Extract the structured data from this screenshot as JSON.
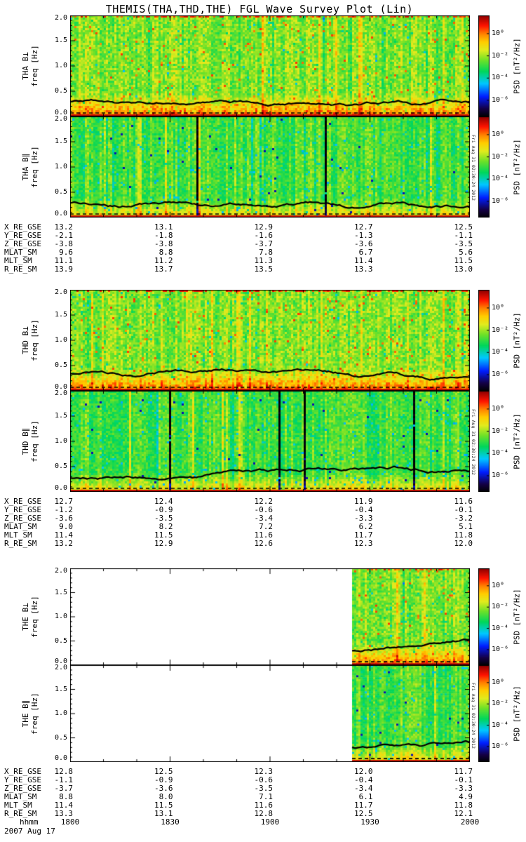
{
  "title": "THEMIS(THA,THD,THE) FGL Wave Survey Plot (Lin)",
  "timestamp_note": "Fri Aug 31 02:30:24 2012",
  "freq_ticks": [
    "2.0",
    "1.5",
    "1.0",
    "0.5",
    "0.0"
  ],
  "colorbar": {
    "title": "PSD [nT²/Hz]",
    "ticks": [
      "10⁰",
      "10⁻²",
      "10⁻⁴",
      "10⁻⁶"
    ]
  },
  "footer": {
    "time_label": "hhmm",
    "time_ticks": [
      "1800",
      "1830",
      "1900",
      "1930",
      "2000"
    ],
    "date": "2007 Aug 17"
  },
  "groups": [
    {
      "probe": "THA",
      "panels": [
        {
          "label_line1": "THA B⊥",
          "label_line2": "freq [Hz]"
        },
        {
          "label_line1": "THA B∥",
          "label_line2": "freq [Hz]"
        }
      ],
      "ephemeris": [
        {
          "label": "X_RE_GSE",
          "values": [
            "13.2",
            "13.1",
            "12.9",
            "12.7",
            "12.5"
          ]
        },
        {
          "label": "Y_RE_GSE",
          "values": [
            "-2.1",
            "-1.8",
            "-1.6",
            "-1.3",
            "-1.1"
          ]
        },
        {
          "label": "Z_RE_GSE",
          "values": [
            "-3.8",
            "-3.8",
            "-3.7",
            "-3.6",
            "-3.5"
          ]
        },
        {
          "label": "MLAT_SM",
          "values": [
            "9.6",
            "8.8",
            "7.8",
            "6.7",
            "5.6"
          ]
        },
        {
          "label": "MLT_SM",
          "values": [
            "11.1",
            "11.2",
            "11.3",
            "11.4",
            "11.5"
          ]
        },
        {
          "label": "R_RE_SM",
          "values": [
            "13.9",
            "13.7",
            "13.5",
            "13.3",
            "13.0"
          ]
        }
      ]
    },
    {
      "probe": "THD",
      "panels": [
        {
          "label_line1": "THD B⊥",
          "label_line2": "freq [Hz]"
        },
        {
          "label_line1": "THD B∥",
          "label_line2": "freq [Hz]"
        }
      ],
      "ephemeris": [
        {
          "label": "X_RE_GSE",
          "values": [
            "12.7",
            "12.4",
            "12.2",
            "11.9",
            "11.6"
          ]
        },
        {
          "label": "Y_RE_GSE",
          "values": [
            "-1.2",
            "-0.9",
            "-0.6",
            "-0.4",
            "-0.1"
          ]
        },
        {
          "label": "Z_RE_GSE",
          "values": [
            "-3.6",
            "-3.5",
            "-3.4",
            "-3.3",
            "-3.2"
          ]
        },
        {
          "label": "MLAT_SM",
          "values": [
            "9.0",
            "8.2",
            "7.2",
            "6.2",
            "5.1"
          ]
        },
        {
          "label": "MLT_SM",
          "values": [
            "11.4",
            "11.5",
            "11.6",
            "11.7",
            "11.8"
          ]
        },
        {
          "label": "R_RE_SM",
          "values": [
            "13.2",
            "12.9",
            "12.6",
            "12.3",
            "12.0"
          ]
        }
      ]
    },
    {
      "probe": "THE",
      "panels": [
        {
          "label_line1": "THE B⊥",
          "label_line2": "freq [Hz]"
        },
        {
          "label_line1": "THE B∥",
          "label_line2": "freq [Hz]"
        }
      ],
      "ephemeris": [
        {
          "label": "X_RE_GSE",
          "values": [
            "12.8",
            "12.5",
            "12.3",
            "12.0",
            "11.7"
          ]
        },
        {
          "label": "Y_RE_GSE",
          "values": [
            "-1.1",
            "-0.9",
            "-0.6",
            "-0.4",
            "-0.1"
          ]
        },
        {
          "label": "Z_RE_GSE",
          "values": [
            "-3.7",
            "-3.6",
            "-3.5",
            "-3.4",
            "-3.3"
          ]
        },
        {
          "label": "MLAT_SM",
          "values": [
            "8.8",
            "8.0",
            "7.1",
            "6.1",
            "4.9"
          ]
        },
        {
          "label": "MLT_SM",
          "values": [
            "11.4",
            "11.5",
            "11.6",
            "11.7",
            "11.8"
          ]
        },
        {
          "label": "R_RE_SM",
          "values": [
            "13.3",
            "13.1",
            "12.8",
            "12.5",
            "12.1"
          ]
        }
      ]
    }
  ],
  "chart_data": [
    {
      "type": "heatmap",
      "title": "THA B⊥ wave power spectrogram",
      "x": {
        "label": "UT hhmm, 2007 Aug 17",
        "range": [
          "1800",
          "2000"
        ],
        "ticks": [
          "1800",
          "1830",
          "1900",
          "1930",
          "2000"
        ]
      },
      "y": {
        "label": "freq [Hz]",
        "range": [
          0,
          2
        ]
      },
      "z": {
        "label": "PSD [nT²/Hz]",
        "scale": "log",
        "ticks": [
          1,
          0.01,
          0.0001,
          1e-06
        ]
      },
      "coverage": [
        "1800",
        "2000"
      ],
      "features": [
        "green-yellow broadband noise background ~1e-3 nT²/Hz",
        "intense orange-red band below ~0.4 Hz",
        "red speckle at 2 Hz edge",
        "dark red strip at 0 Hz",
        "dashed black line near 0.07 Hz"
      ],
      "black_line_freq_hz": {
        "t": [
          "1800",
          "1830",
          "1900",
          "1930",
          "2000"
        ],
        "f": [
          0.28,
          0.3,
          0.27,
          0.31,
          0.26
        ]
      }
    },
    {
      "type": "heatmap",
      "title": "THA B∥ wave power spectrogram",
      "x": {
        "label": "UT hhmm, 2007 Aug 17",
        "range": [
          "1800",
          "2000"
        ],
        "ticks": [
          "1800",
          "1830",
          "1900",
          "1930",
          "2000"
        ]
      },
      "y": {
        "label": "freq [Hz]",
        "range": [
          0,
          2
        ]
      },
      "z": {
        "label": "PSD [nT²/Hz]",
        "scale": "log",
        "ticks": [
          1,
          0.01,
          0.0001,
          1e-06
        ]
      },
      "coverage": [
        "1800",
        "2000"
      ],
      "features": [
        "green-teal background with yellow vertical striping",
        "yellow-orange enhancement below ~0.35 Hz",
        "red strip at 0 Hz",
        "dashed black line near 0.07 Hz"
      ],
      "black_line_freq_hz": {
        "t": [
          "1800",
          "1830",
          "1900",
          "1930",
          "2000"
        ],
        "f": [
          0.26,
          0.28,
          0.26,
          0.3,
          0.25
        ]
      }
    },
    {
      "type": "heatmap",
      "title": "THD B⊥ wave power spectrogram",
      "x": {
        "label": "UT hhmm, 2007 Aug 17",
        "range": [
          "1800",
          "2000"
        ],
        "ticks": [
          "1800",
          "1830",
          "1900",
          "1930",
          "2000"
        ]
      },
      "y": {
        "label": "freq [Hz]",
        "range": [
          0,
          2
        ]
      },
      "z": {
        "label": "PSD [nT²/Hz]",
        "scale": "log",
        "ticks": [
          1,
          0.01,
          0.0001,
          1e-06
        ]
      },
      "coverage": [
        "1800",
        "2000"
      ],
      "features": [
        "green-yellow broadband background",
        "strong orange-red band below ~0.5 Hz, most intense 1900-1945",
        "black line rises mid-interval",
        "dashed black line near 0.07 Hz"
      ],
      "black_line_freq_hz": {
        "t": [
          "1800",
          "1830",
          "1900",
          "1930",
          "2000"
        ],
        "f": [
          0.33,
          0.38,
          0.42,
          0.47,
          0.42
        ]
      }
    },
    {
      "type": "heatmap",
      "title": "THD B∥ wave power spectrogram",
      "x": {
        "label": "UT hhmm, 2007 Aug 17",
        "range": [
          "1800",
          "2000"
        ],
        "ticks": [
          "1800",
          "1830",
          "1900",
          "1930",
          "2000"
        ]
      },
      "y": {
        "label": "freq [Hz]",
        "range": [
          0,
          2
        ]
      },
      "z": {
        "label": "PSD [nT²/Hz]",
        "scale": "log",
        "ticks": [
          1,
          0.01,
          0.0001,
          1e-06
        ]
      },
      "coverage": [
        "1800",
        "2000"
      ],
      "features": [
        "green-teal background with yellow striping and sparse dark gaps",
        "yellow enhancement below ~0.35 Hz",
        "red strip at 0 Hz",
        "dashed black line near 0.07 Hz"
      ],
      "black_line_freq_hz": {
        "t": [
          "1800",
          "1830",
          "1900",
          "1930",
          "2000"
        ],
        "f": [
          0.3,
          0.33,
          0.36,
          0.38,
          0.33
        ]
      }
    },
    {
      "type": "heatmap",
      "title": "THE B⊥ wave power spectrogram",
      "x": {
        "label": "UT hhmm, 2007 Aug 17",
        "range": [
          "1800",
          "2000"
        ],
        "ticks": [
          "1800",
          "1830",
          "1900",
          "1930",
          "2000"
        ]
      },
      "y": {
        "label": "freq [Hz]",
        "range": [
          0,
          2
        ]
      },
      "z": {
        "label": "PSD [nT²/Hz]",
        "scale": "log",
        "ticks": [
          1,
          0.01,
          0.0001,
          1e-06
        ]
      },
      "coverage": [
        "~1925",
        "2000"
      ],
      "features": [
        "no data (white) before ~1925 UT",
        "green-yellow background with orange-red band below ~0.4 Hz after ~1925"
      ],
      "black_line_freq_hz": {
        "t": [
          "1930",
          "2000"
        ],
        "f": [
          0.32,
          0.28
        ]
      }
    },
    {
      "type": "heatmap",
      "title": "THE B∥ wave power spectrogram",
      "x": {
        "label": "UT hhmm, 2007 Aug 17",
        "range": [
          "1800",
          "2000"
        ],
        "ticks": [
          "1800",
          "1830",
          "1900",
          "1930",
          "2000"
        ]
      },
      "y": {
        "label": "freq [Hz]",
        "range": [
          0,
          2
        ]
      },
      "z": {
        "label": "PSD [nT²/Hz]",
        "scale": "log",
        "ticks": [
          1,
          0.01,
          0.0001,
          1e-06
        ]
      },
      "coverage": [
        "~1925",
        "2000"
      ],
      "features": [
        "no data (white) before ~1925 UT",
        "green background with yellow band below ~0.4 Hz and red strip at 0 Hz after ~1925"
      ],
      "black_line_freq_hz": {
        "t": [
          "1930",
          "2000"
        ],
        "f": [
          0.38,
          0.33
        ]
      }
    }
  ]
}
